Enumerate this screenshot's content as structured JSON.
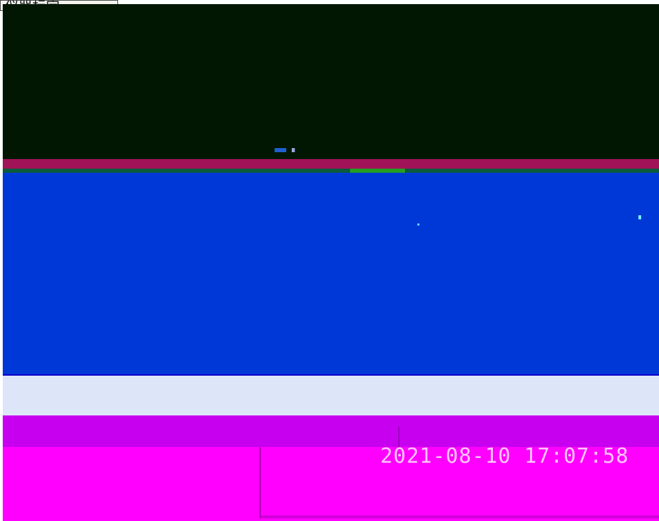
{
  "window": {
    "title": "仪器标定"
  },
  "status": {
    "left_text": "",
    "right_text": ""
  },
  "footer": {
    "datetime": "2021-08-10 17:07:58"
  },
  "colors": {
    "dark_panel": "#021702",
    "main_panel": "#0038d8",
    "status_bar": "#dde6f8",
    "footer_top": "#c800f0",
    "footer_bottom": "#ff00ff"
  }
}
